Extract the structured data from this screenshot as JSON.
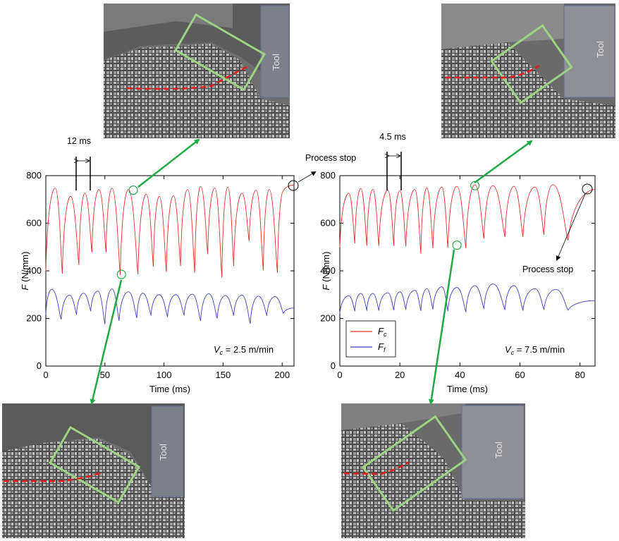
{
  "chart_data": [
    {
      "type": "line",
      "xlabel": "Time (ms)",
      "ylabel_main": "F",
      "ylabel_unit": " (N/mm)",
      "xlim": [
        0,
        210
      ],
      "ylim": [
        0,
        800
      ],
      "xticks": [
        0,
        50,
        100,
        150,
        200
      ],
      "yticks": [
        0,
        200,
        400,
        600,
        800
      ],
      "annotation_vc_symbol": "V",
      "annotation_vc_sub": "c",
      "annotation_vc_value": " = 2.5 m/min",
      "period_label": "12 ms",
      "period_marks_x": [
        25.5,
        37.5
      ],
      "stop_label": "Process stop",
      "stop_point": [
        210,
        758
      ],
      "tool_label": "Tool",
      "series": [
        {
          "name": "Fc",
          "color": "#e8312f",
          "peaks": [
            [
              8,
              748
            ],
            [
              21,
              713
            ],
            [
              33,
              726
            ],
            [
              45,
              742
            ],
            [
              56,
              748
            ],
            [
              70,
              742
            ],
            [
              85,
              722
            ],
            [
              96,
              713
            ],
            [
              108,
              716
            ],
            [
              120,
              742
            ],
            [
              131,
              755
            ],
            [
              143,
              748
            ],
            [
              154,
              752
            ],
            [
              166,
              726
            ],
            [
              178,
              739
            ],
            [
              189,
              742
            ],
            [
              201,
              735
            ],
            [
              210,
              760
            ]
          ],
          "valleys": [
            [
              0,
              398
            ],
            [
              14,
              388
            ],
            [
              28,
              425
            ],
            [
              39,
              478
            ],
            [
              51,
              478
            ],
            [
              63,
              382
            ],
            [
              78,
              385
            ],
            [
              91,
              418
            ],
            [
              102,
              395
            ],
            [
              114,
              421
            ],
            [
              126,
              392
            ],
            [
              137,
              470
            ],
            [
              149,
              372
            ],
            [
              159,
              421
            ],
            [
              172,
              525
            ],
            [
              184,
              402
            ],
            [
              196,
              392
            ]
          ]
        },
        {
          "name": "Ff",
          "color": "#3f3fc8",
          "peaks": [
            [
              5,
              322
            ],
            [
              20,
              298
            ],
            [
              32,
              306
            ],
            [
              44,
              315
            ],
            [
              56,
              324
            ],
            [
              70,
              312
            ],
            [
              82,
              306
            ],
            [
              96,
              300
            ],
            [
              110,
              300
            ],
            [
              124,
              302
            ],
            [
              138,
              304
            ],
            [
              152,
              296
            ],
            [
              166,
              298
            ],
            [
              180,
              294
            ],
            [
              194,
              292
            ],
            [
              210,
              244
            ]
          ],
          "valleys": [
            [
              0,
              216
            ],
            [
              13,
              196
            ],
            [
              26,
              218
            ],
            [
              38,
              232
            ],
            [
              50,
              176
            ],
            [
              62,
              190
            ],
            [
              77,
              202
            ],
            [
              89,
              214
            ],
            [
              103,
              208
            ],
            [
              117,
              214
            ],
            [
              131,
              190
            ],
            [
              145,
              200
            ],
            [
              159,
              214
            ],
            [
              173,
              178
            ],
            [
              187,
              214
            ],
            [
              201,
              222
            ]
          ]
        }
      ],
      "highlight_points": [
        [
          74,
          739
        ],
        [
          64,
          385
        ]
      ]
    },
    {
      "type": "line",
      "xlabel": "Time (ms)",
      "ylabel_main": "F",
      "ylabel_unit": " (N/mm)",
      "xlim": [
        0,
        85
      ],
      "ylim": [
        0,
        800
      ],
      "xticks": [
        0,
        20,
        40,
        60,
        80
      ],
      "yticks": [
        0,
        200,
        400,
        600,
        800
      ],
      "annotation_vc_symbol": "V",
      "annotation_vc_sub": "c",
      "annotation_vc_value": " = 7.5 m/min",
      "period_label": "4.5 ms",
      "period_marks_x": [
        16.2,
        20.7
      ],
      "stop_label": "Process stop",
      "stop_point": [
        85,
        742
      ],
      "tool_label": "Tool",
      "legend_position": "lower-left",
      "series": [
        {
          "name": "Fc",
          "legend_symbol": "F",
          "legend_sub": "c",
          "color": "#e8312f",
          "peaks": [
            [
              3,
              726
            ],
            [
              7,
              746
            ],
            [
              11,
              742
            ],
            [
              16,
              739
            ],
            [
              20,
              736
            ],
            [
              25,
              742
            ],
            [
              29,
              749
            ],
            [
              34,
              752
            ],
            [
              39,
              755
            ],
            [
              45,
              762
            ],
            [
              51,
              758
            ],
            [
              58,
              755
            ],
            [
              65,
              752
            ],
            [
              71,
              762
            ],
            [
              85,
              742
            ]
          ],
          "valleys": [
            [
              0,
              498
            ],
            [
              5,
              515
            ],
            [
              9,
              505
            ],
            [
              13,
              505
            ],
            [
              18,
              505
            ],
            [
              22,
              502
            ],
            [
              27,
              472
            ],
            [
              31,
              495
            ],
            [
              36,
              498
            ],
            [
              42,
              495
            ],
            [
              48,
              535
            ],
            [
              55,
              542
            ],
            [
              61,
              542
            ],
            [
              68,
              552
            ],
            [
              76,
              528
            ]
          ]
        },
        {
          "name": "Ff",
          "legend_symbol": "F",
          "legend_sub": "f",
          "color": "#3f3fc8",
          "peaks": [
            [
              3,
              295
            ],
            [
              7,
              305
            ],
            [
              11,
              305
            ],
            [
              16,
              308
            ],
            [
              20,
              312
            ],
            [
              25,
              318
            ],
            [
              29,
              325
            ],
            [
              34,
              333
            ],
            [
              39,
              330
            ],
            [
              45,
              338
            ],
            [
              51,
              345
            ],
            [
              58,
              338
            ],
            [
              65,
              325
            ],
            [
              72,
              322
            ],
            [
              85,
              275
            ]
          ],
          "valleys": [
            [
              0,
              222
            ],
            [
              5,
              232
            ],
            [
              9,
              235
            ],
            [
              13,
              235
            ],
            [
              18,
              235
            ],
            [
              22,
              238
            ],
            [
              27,
              232
            ],
            [
              31,
              238
            ],
            [
              36,
              232
            ],
            [
              42,
              228
            ],
            [
              48,
              242
            ],
            [
              55,
              238
            ],
            [
              61,
              235
            ],
            [
              68,
              238
            ],
            [
              76,
              235
            ]
          ]
        }
      ],
      "highlight_points": [
        [
          45,
          758
        ],
        [
          39,
          508
        ]
      ]
    }
  ]
}
